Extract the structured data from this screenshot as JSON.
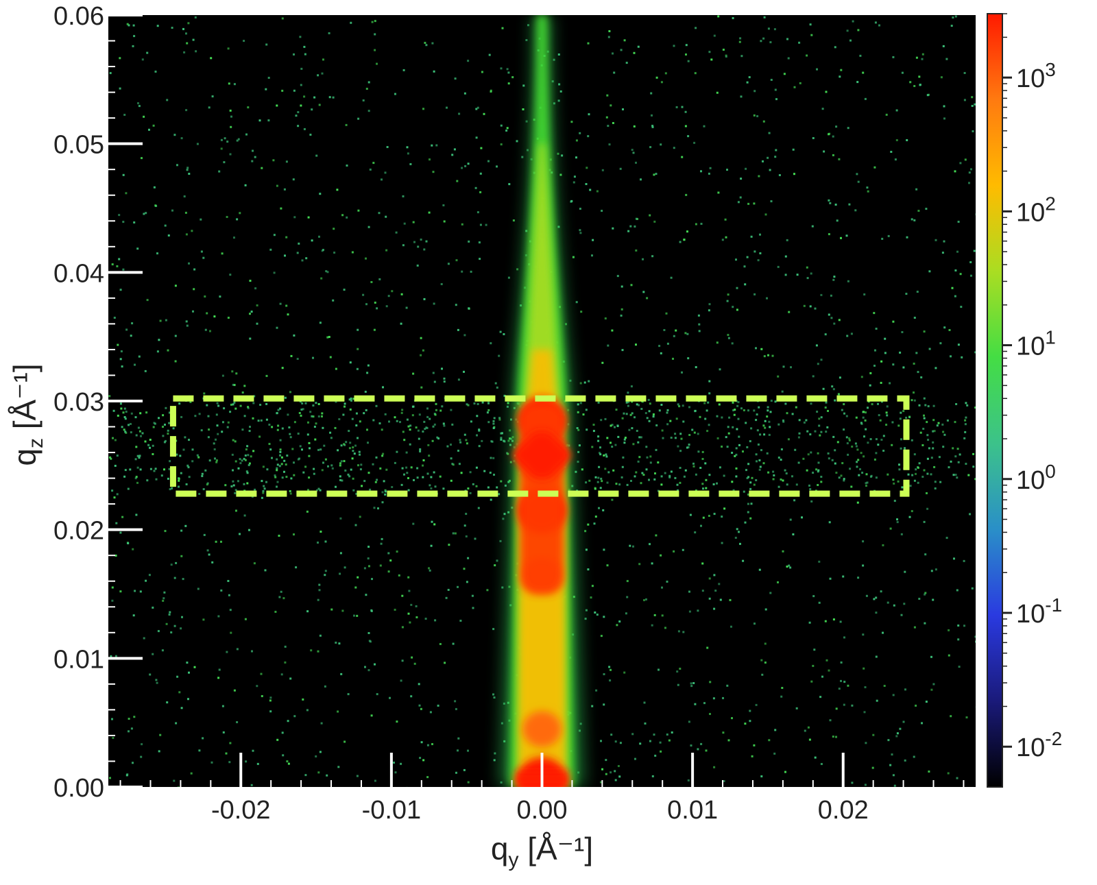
{
  "chart_data": {
    "type": "heatmap",
    "title": "",
    "xlabel": "q",
    "xlabel_sub": "y",
    "xlabel_unit": " [Å⁻¹]",
    "ylabel": "q",
    "ylabel_sub": "z",
    "ylabel_unit": " [Å⁻¹]",
    "xlim": [
      -0.0288,
      0.0288
    ],
    "ylim": [
      0.0,
      0.06
    ],
    "x_ticks": [
      -0.02,
      -0.01,
      0.0,
      0.01,
      0.02
    ],
    "x_tick_labels": [
      "-0.02",
      "-0.01",
      "0.00",
      "0.01",
      "0.02"
    ],
    "y_ticks": [
      0.0,
      0.01,
      0.02,
      0.03,
      0.04,
      0.05,
      0.06
    ],
    "y_tick_labels": [
      "0.00",
      "0.01",
      "0.02",
      "0.03",
      "0.04",
      "0.05",
      "0.06"
    ],
    "grid": false,
    "background": "#000000",
    "colorbar": {
      "scale": "log",
      "range": [
        0.005,
        3000
      ],
      "ticks": [
        0.01,
        0.1,
        1,
        10,
        100,
        1000
      ],
      "tick_labels": [
        {
          "base": "10",
          "exp": "-2"
        },
        {
          "base": "10",
          "exp": "-1"
        },
        {
          "base": "10",
          "exp": "0"
        },
        {
          "base": "10",
          "exp": "1"
        },
        {
          "base": "10",
          "exp": "2"
        },
        {
          "base": "10",
          "exp": "3"
        }
      ],
      "colors": [
        "#000000",
        "#1a1a7a",
        "#2a3ae0",
        "#2a8fc8",
        "#3cc28a",
        "#44dd44",
        "#aadd22",
        "#ffbb00",
        "#ff7a10",
        "#ff1a00"
      ]
    },
    "highlight_box": {
      "qy_range": [
        -0.0245,
        0.0242
      ],
      "qz_range": [
        0.0228,
        0.0302
      ],
      "color": "#ccff55",
      "style": "dashed"
    },
    "features": {
      "specular_rod_center_qy": 0.0,
      "intensity_maxima_qz": [
        0.0005,
        0.0045,
        0.0165,
        0.0215,
        0.0258,
        0.0285
      ]
    }
  }
}
